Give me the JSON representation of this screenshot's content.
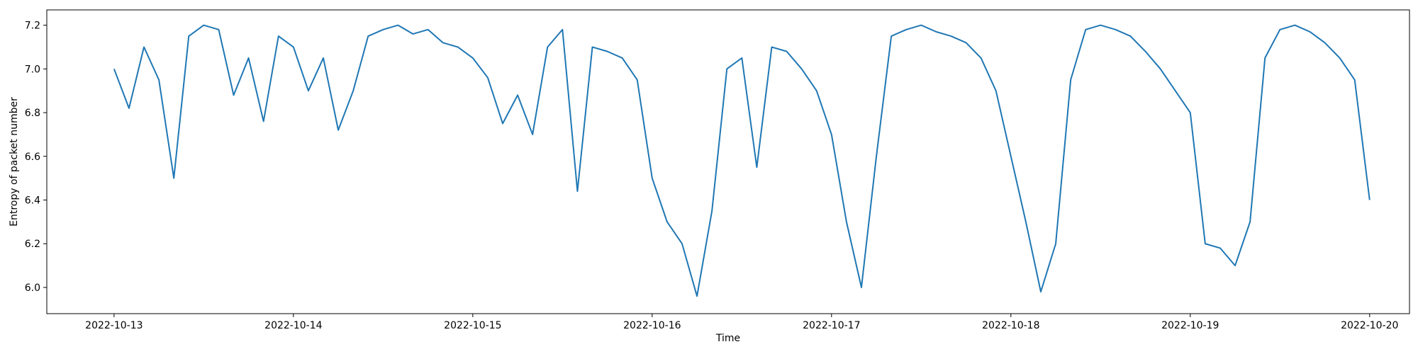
{
  "chart_data": {
    "type": "line",
    "title": "",
    "xlabel": "Time",
    "ylabel": "Entropy of packet number",
    "x_ticks": [
      "2022-10-13",
      "2022-10-14",
      "2022-10-15",
      "2022-10-16",
      "2022-10-17",
      "2022-10-18",
      "2022-10-19",
      "2022-10-20"
    ],
    "y_ticks": [
      "6.0",
      "6.2",
      "6.4",
      "6.6",
      "6.8",
      "7.0",
      "7.2"
    ],
    "xlim": [
      "2022-10-12T15:00",
      "2022-10-20T05:20"
    ],
    "ylim": [
      5.88,
      7.27
    ],
    "grid": false,
    "line_color": "#1f77b4",
    "series": [
      {
        "x": [
          "2022-10-13T00:00",
          "2022-10-13T02:00",
          "2022-10-13T04:00",
          "2022-10-13T06:00",
          "2022-10-13T08:00",
          "2022-10-13T10:00",
          "2022-10-13T12:00",
          "2022-10-13T14:00",
          "2022-10-13T16:00",
          "2022-10-13T18:00",
          "2022-10-13T20:00",
          "2022-10-13T22:00",
          "2022-10-14T00:00",
          "2022-10-14T02:00",
          "2022-10-14T04:00",
          "2022-10-14T06:00",
          "2022-10-14T08:00",
          "2022-10-14T10:00",
          "2022-10-14T12:00",
          "2022-10-14T14:00",
          "2022-10-14T16:00",
          "2022-10-14T18:00",
          "2022-10-14T20:00",
          "2022-10-14T22:00",
          "2022-10-15T00:00",
          "2022-10-15T02:00",
          "2022-10-15T04:00",
          "2022-10-15T06:00",
          "2022-10-15T08:00",
          "2022-10-15T10:00",
          "2022-10-15T12:00",
          "2022-10-15T14:00",
          "2022-10-15T16:00",
          "2022-10-15T18:00",
          "2022-10-15T20:00",
          "2022-10-15T22:00",
          "2022-10-16T00:00",
          "2022-10-16T02:00",
          "2022-10-16T04:00",
          "2022-10-16T06:00",
          "2022-10-16T08:00",
          "2022-10-16T10:00",
          "2022-10-16T12:00",
          "2022-10-16T14:00",
          "2022-10-16T16:00",
          "2022-10-16T18:00",
          "2022-10-16T20:00",
          "2022-10-16T22:00",
          "2022-10-17T00:00",
          "2022-10-17T02:00",
          "2022-10-17T04:00",
          "2022-10-17T06:00",
          "2022-10-17T08:00",
          "2022-10-17T10:00",
          "2022-10-17T12:00",
          "2022-10-17T14:00",
          "2022-10-17T16:00",
          "2022-10-17T18:00",
          "2022-10-17T20:00",
          "2022-10-17T22:00",
          "2022-10-18T00:00",
          "2022-10-18T02:00",
          "2022-10-18T04:00",
          "2022-10-18T06:00",
          "2022-10-18T08:00",
          "2022-10-18T10:00",
          "2022-10-18T12:00",
          "2022-10-18T14:00",
          "2022-10-18T16:00",
          "2022-10-18T18:00",
          "2022-10-18T20:00",
          "2022-10-18T22:00",
          "2022-10-19T00:00",
          "2022-10-19T02:00",
          "2022-10-19T04:00",
          "2022-10-19T06:00",
          "2022-10-19T08:00",
          "2022-10-19T10:00",
          "2022-10-19T12:00",
          "2022-10-19T14:00",
          "2022-10-19T16:00",
          "2022-10-19T18:00",
          "2022-10-19T20:00",
          "2022-10-19T22:00",
          "2022-10-20T00:00"
        ],
        "y": [
          7.0,
          6.82,
          7.1,
          6.95,
          6.5,
          7.15,
          7.2,
          7.18,
          6.88,
          7.05,
          6.76,
          7.15,
          7.1,
          6.9,
          7.05,
          6.72,
          6.9,
          7.15,
          7.18,
          7.2,
          7.16,
          7.18,
          7.12,
          7.1,
          7.05,
          6.96,
          6.75,
          6.88,
          6.7,
          7.1,
          7.18,
          6.44,
          7.1,
          7.08,
          7.05,
          6.95,
          6.5,
          6.3,
          6.2,
          5.96,
          6.35,
          7.0,
          7.05,
          6.55,
          7.1,
          7.08,
          7.0,
          6.9,
          6.7,
          6.3,
          6.0,
          6.6,
          7.15,
          7.18,
          7.2,
          7.17,
          7.15,
          7.12,
          7.05,
          6.9,
          6.6,
          6.3,
          5.98,
          6.2,
          6.95,
          7.18,
          7.2,
          7.18,
          7.15,
          7.08,
          7.0,
          6.9,
          6.8,
          6.2,
          6.18,
          6.1,
          6.3,
          7.05,
          7.18,
          7.2,
          7.17,
          7.12,
          7.05,
          6.95,
          6.4
        ]
      }
    ]
  }
}
